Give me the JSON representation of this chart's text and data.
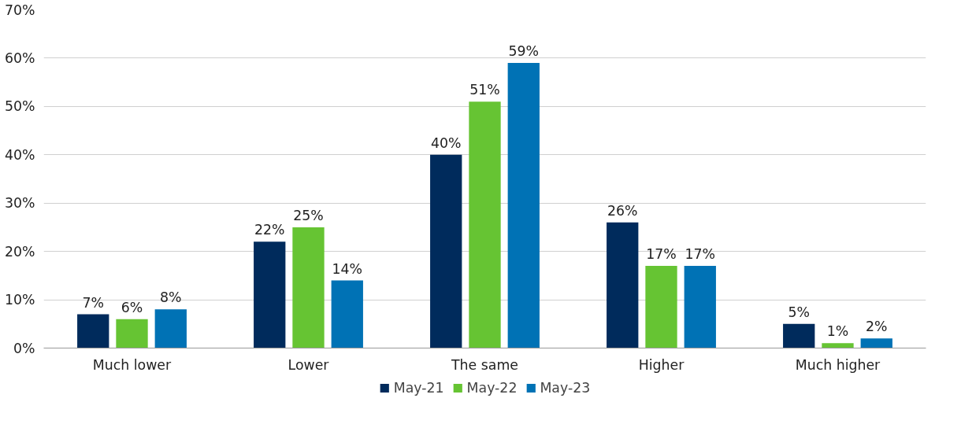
{
  "chart_data": {
    "type": "bar",
    "categories": [
      "Much lower",
      "Lower",
      "The same",
      "Higher",
      "Much higher"
    ],
    "series": [
      {
        "name": "May-21",
        "color": "#002b5c",
        "values": [
          7,
          22,
          40,
          26,
          5
        ],
        "value_labels": [
          "7%",
          "22%",
          "40%",
          "26%",
          "5%"
        ]
      },
      {
        "name": "May-22",
        "color": "#66c433",
        "values": [
          6,
          25,
          51,
          17,
          1
        ],
        "value_labels": [
          "6%",
          "25%",
          "51%",
          "17%",
          "1%"
        ]
      },
      {
        "name": "May-23",
        "color": "#0072b5",
        "values": [
          8,
          14,
          59,
          17,
          2
        ],
        "value_labels": [
          "8%",
          "14%",
          "59%",
          "17%",
          "2%"
        ]
      }
    ],
    "ylim": [
      0,
      70
    ],
    "yticks": [
      {
        "value": 0,
        "label": "0%"
      },
      {
        "value": 10,
        "label": "10%"
      },
      {
        "value": 20,
        "label": "20%"
      },
      {
        "value": 30,
        "label": "30%"
      },
      {
        "value": 40,
        "label": "40%"
      },
      {
        "value": 50,
        "label": "50%"
      },
      {
        "value": 60,
        "label": "60%"
      },
      {
        "value": 70,
        "label": "70%"
      }
    ],
    "grid": "y",
    "legend": "bottom"
  }
}
